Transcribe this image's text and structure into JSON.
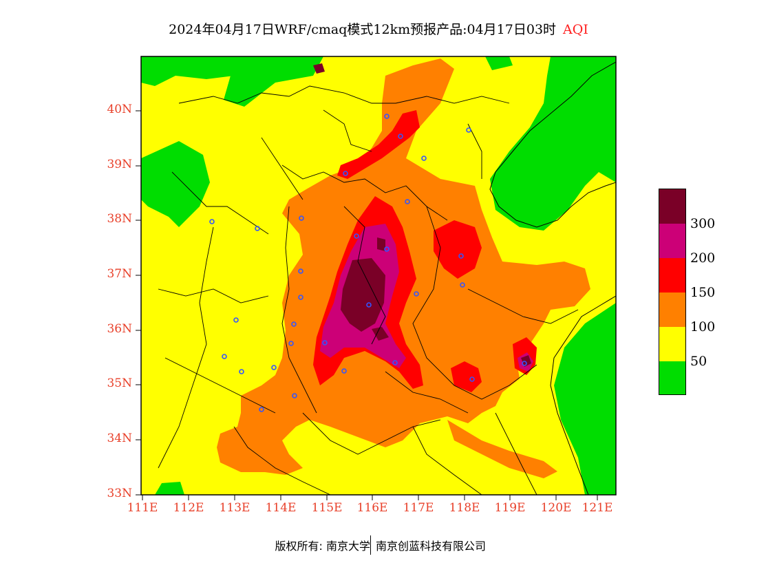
{
  "title": {
    "main": "2024年04月17日WRF/cmaq模式12km预报产品:04月17日03时",
    "variable": "AQI"
  },
  "axes": {
    "lat_labels": [
      "33N",
      "34N",
      "35N",
      "36N",
      "37N",
      "38N",
      "39N",
      "40N"
    ],
    "lon_labels": [
      "111E",
      "112E",
      "113E",
      "114E",
      "115E",
      "116E",
      "117E",
      "118E",
      "119E",
      "120E",
      "121E"
    ],
    "lat_range": [
      33,
      41
    ],
    "lon_range": [
      111,
      121.3
    ]
  },
  "legend": {
    "levels": [
      {
        "color": "#00dd00",
        "label": ""
      },
      {
        "color": "#ffff00",
        "label": "50"
      },
      {
        "color": "#ff8000",
        "label": "100"
      },
      {
        "color": "#ff0000",
        "label": "150"
      },
      {
        "color": "#cc0077",
        "label": "200"
      },
      {
        "color": "#7a0027",
        "label": "300"
      }
    ]
  },
  "colors": {
    "good": "#00dd00",
    "moderate": "#ffff00",
    "usg": "#ff8000",
    "unhealthy": "#ff0000",
    "very_unhealthy": "#cc0077",
    "hazardous": "#7a0027"
  },
  "footer": {
    "copyright_left": "版权所有: 南京大学",
    "copyright_right": "南京创蓝科技有限公司"
  }
}
